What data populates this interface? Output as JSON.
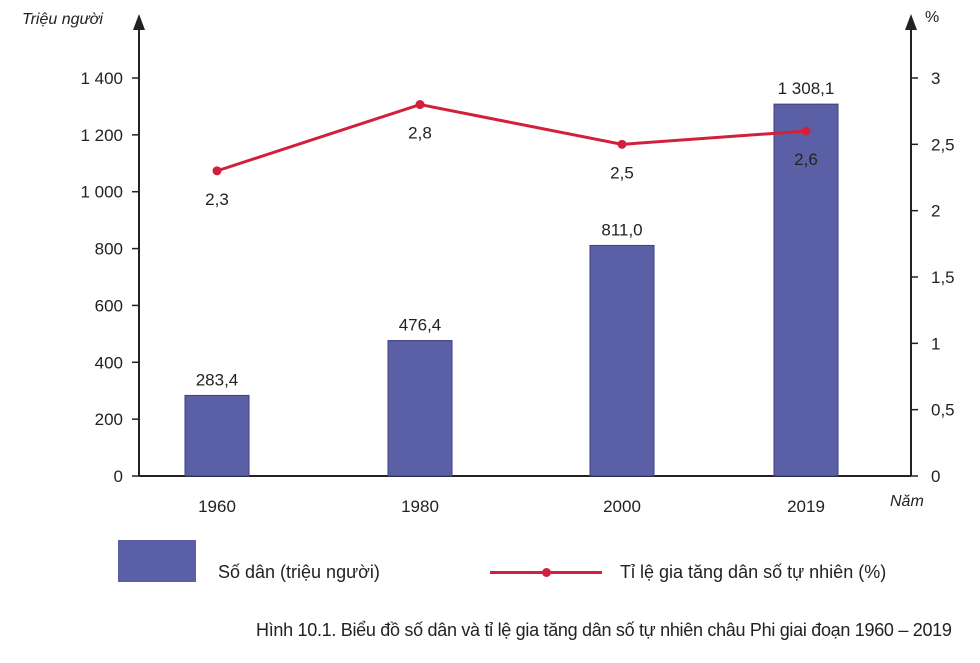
{
  "chart_data": {
    "type": "bar",
    "caption": "Hình 10.1. Biểu đồ số dân và tỉ lệ gia tăng dân số tự nhiên châu Phi giai đoạn 1960 – 2019",
    "categories": [
      "1960",
      "1980",
      "2000",
      "2019"
    ],
    "xlabel": "Năm",
    "y_left": {
      "label": "Triệu người",
      "range": [
        0,
        1400
      ],
      "ticks": [
        "0",
        "200",
        "400",
        "600",
        "800",
        "1 000",
        "1 200",
        "1 400"
      ]
    },
    "y_right": {
      "label": "%",
      "range": [
        0,
        3
      ],
      "ticks": [
        "0",
        "0,5",
        "1",
        "1,5",
        "2",
        "2,5",
        "3"
      ]
    },
    "series": [
      {
        "name": "Số dân (triệu người)",
        "type": "bar",
        "axis": "left",
        "values": [
          283.4,
          476.4,
          811.0,
          1308.1
        ],
        "labels": [
          "283,4",
          "476,4",
          "811,0",
          "1 308,1"
        ],
        "color": "#5b5fa6"
      },
      {
        "name": "Tỉ lệ gia tăng dân số tự nhiên (%)",
        "type": "line",
        "axis": "right",
        "values": [
          2.3,
          2.8,
          2.5,
          2.6
        ],
        "labels": [
          "2,3",
          "2,8",
          "2,5",
          "2,6"
        ],
        "color": "#d2203c"
      }
    ],
    "grid": false,
    "legend_position": "bottom"
  }
}
